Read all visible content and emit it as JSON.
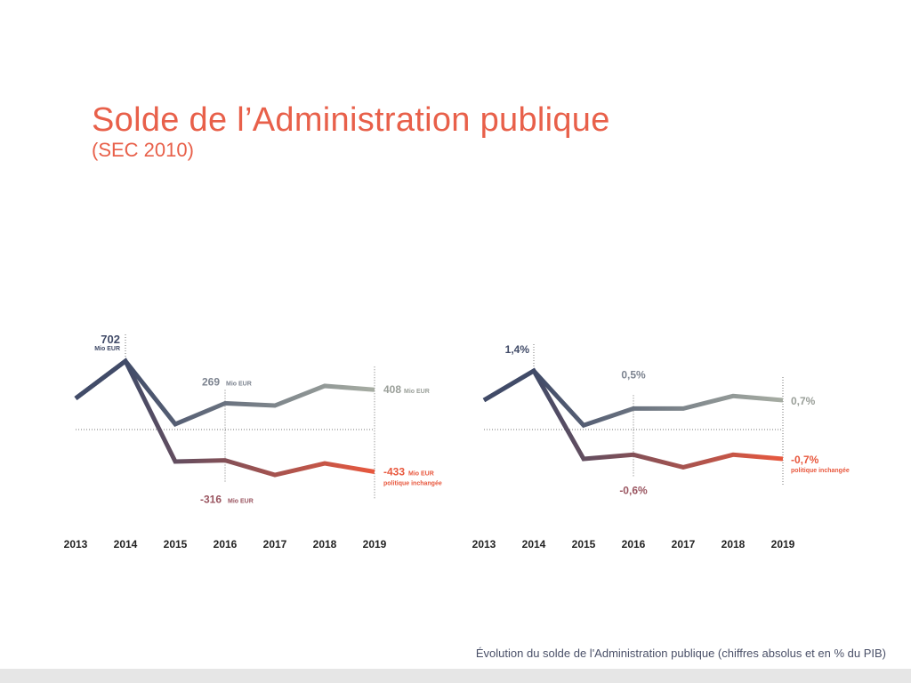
{
  "title": "Solde de l’Administration publique",
  "subtitle": "(SEC 2010)",
  "caption": "Évolution du solde de l'Administration publique (chiffres absolus et en % du PIB)",
  "colors": {
    "title": "#e8604a",
    "dark": "#414b68",
    "light": "#a7ada3",
    "red": "#e8583e"
  },
  "chart_data": [
    {
      "type": "line",
      "unit": "Mio EUR",
      "categories": [
        "2013",
        "2014",
        "2015",
        "2016",
        "2017",
        "2018",
        "2019"
      ],
      "series": [
        {
          "values": [
            319,
            702,
            55,
            269,
            246,
            447,
            408
          ]
        },
        {
          "name": "politique inchangée",
          "values": [
            319,
            702,
            -328,
            -316,
            -465,
            -347,
            -433
          ]
        }
      ],
      "annotations": [
        {
          "x": "2014",
          "value": "702",
          "unit": "Mio EUR"
        },
        {
          "x": "2016",
          "value": "269",
          "unit": "Mio EUR"
        },
        {
          "x": "2019",
          "value": "408",
          "unit": "Mio EUR"
        },
        {
          "x": "2016",
          "value": "-316",
          "unit": "Mio EUR"
        },
        {
          "x": "2019",
          "value": "-433",
          "unit": "Mio EUR",
          "note": "politique inchangée"
        }
      ]
    },
    {
      "type": "line",
      "unit": "% du PIB",
      "categories": [
        "2013",
        "2014",
        "2015",
        "2016",
        "2017",
        "2018",
        "2019"
      ],
      "series": [
        {
          "values": [
            0.7,
            1.4,
            0.1,
            0.5,
            0.5,
            0.8,
            0.7
          ]
        },
        {
          "name": "politique inchangée",
          "values": [
            0.7,
            1.4,
            -0.7,
            -0.6,
            -0.9,
            -0.6,
            -0.7
          ]
        }
      ],
      "annotations": [
        {
          "x": "2014",
          "value": "1,4%"
        },
        {
          "x": "2016",
          "value": "0,5%"
        },
        {
          "x": "2019",
          "value": "0,7%"
        },
        {
          "x": "2016",
          "value": "-0,6%"
        },
        {
          "x": "2019",
          "value": "-0,7%",
          "note": "politique inchangée"
        }
      ]
    }
  ]
}
